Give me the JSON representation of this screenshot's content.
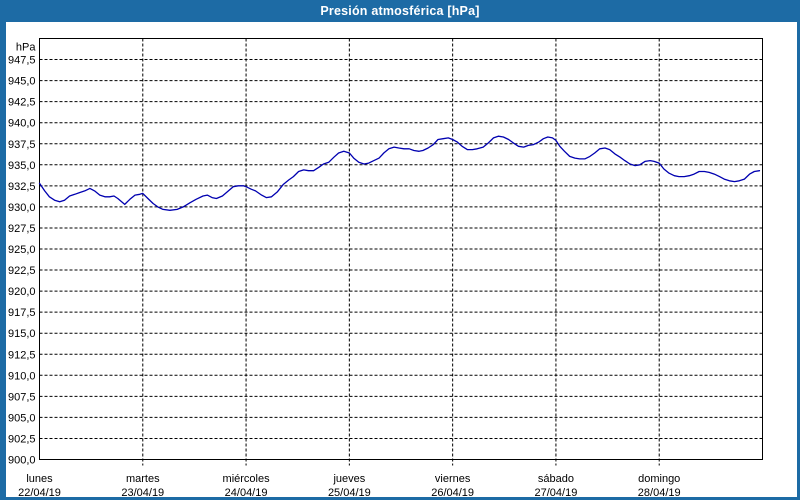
{
  "window": {
    "title": "Presión atmosférica [hPa]",
    "colors": {
      "frame": "#1d6ba5",
      "title_text": "#ffffff",
      "background": "#ffffff",
      "grid": "#000000",
      "text": "#000000",
      "line": "#0000b0"
    }
  },
  "chart_data": {
    "type": "line",
    "title": "Presión atmosférica [hPa]",
    "grid": "dashed",
    "legend_position": "none",
    "y_axis": {
      "unit_label": "hPa",
      "min": 900,
      "max": 950,
      "tick_step": 2.5,
      "tick_labels": [
        "947,5",
        "945,0",
        "942,5",
        "940,0",
        "937,5",
        "935,0",
        "932,5",
        "930,0",
        "927,5",
        "925,0",
        "922,5",
        "920,0",
        "917,5",
        "915,0",
        "912,5",
        "910,0",
        "907,5",
        "905,0",
        "902,5",
        "900,0"
      ]
    },
    "x_axis": {
      "total_hours": 168,
      "days": [
        {
          "name": "lunes",
          "date": "22/04/19"
        },
        {
          "name": "martes",
          "date": "23/04/19"
        },
        {
          "name": "miércoles",
          "date": "24/04/19"
        },
        {
          "name": "jueves",
          "date": "25/04/19"
        },
        {
          "name": "viernes",
          "date": "26/04/19"
        },
        {
          "name": "sábado",
          "date": "27/04/19"
        },
        {
          "name": "domingo",
          "date": "28/04/19"
        }
      ]
    },
    "series": [
      {
        "name": "Presión atmosférica",
        "color": "#0000b0",
        "points_hours_hpa": [
          [
            0,
            932.8
          ],
          [
            1.2,
            931.9
          ],
          [
            2.3,
            931.2
          ],
          [
            3.5,
            930.8
          ],
          [
            4.7,
            930.6
          ],
          [
            5.8,
            930.8
          ],
          [
            7,
            931.3
          ],
          [
            8.2,
            931.5
          ],
          [
            9.3,
            931.7
          ],
          [
            10.5,
            931.9
          ],
          [
            11.7,
            932.2
          ],
          [
            12.8,
            931.9
          ],
          [
            14,
            931.4
          ],
          [
            15.2,
            931.2
          ],
          [
            16.3,
            931.2
          ],
          [
            17.3,
            931.3
          ],
          [
            18.2,
            931.0
          ],
          [
            19.8,
            930.3
          ],
          [
            21,
            930.9
          ],
          [
            22.2,
            931.4
          ],
          [
            23.3,
            931.5
          ],
          [
            24,
            931.6
          ],
          [
            25.2,
            931.0
          ],
          [
            26.4,
            930.4
          ],
          [
            27.5,
            930.0
          ],
          [
            28.7,
            929.7
          ],
          [
            30.3,
            929.6
          ],
          [
            32,
            929.7
          ],
          [
            33.4,
            930.0
          ],
          [
            35,
            930.5
          ],
          [
            36.4,
            930.9
          ],
          [
            38,
            931.3
          ],
          [
            39,
            931.4
          ],
          [
            40.1,
            931.1
          ],
          [
            41.1,
            931.0
          ],
          [
            42.5,
            931.3
          ],
          [
            43.9,
            931.9
          ],
          [
            45,
            932.4
          ],
          [
            46.2,
            932.5
          ],
          [
            47.4,
            932.5
          ],
          [
            48,
            932.4
          ],
          [
            49.2,
            932.1
          ],
          [
            50.2,
            931.9
          ],
          [
            51.6,
            931.4
          ],
          [
            52.7,
            931.1
          ],
          [
            53.9,
            931.2
          ],
          [
            55.3,
            931.8
          ],
          [
            56.7,
            932.7
          ],
          [
            57.9,
            933.2
          ],
          [
            59,
            933.6
          ],
          [
            60.2,
            934.2
          ],
          [
            61.4,
            934.4
          ],
          [
            62.5,
            934.3
          ],
          [
            63.7,
            934.3
          ],
          [
            64.9,
            934.7
          ],
          [
            66,
            935.1
          ],
          [
            67.2,
            935.3
          ],
          [
            68.4,
            935.9
          ],
          [
            69.5,
            936.4
          ],
          [
            70.7,
            936.6
          ],
          [
            72,
            936.4
          ],
          [
            73,
            935.8
          ],
          [
            74.2,
            935.3
          ],
          [
            75.4,
            935.1
          ],
          [
            76.5,
            935.2
          ],
          [
            77.7,
            935.5
          ],
          [
            78.9,
            935.8
          ],
          [
            80,
            936.4
          ],
          [
            81.2,
            936.9
          ],
          [
            82.4,
            937.1
          ],
          [
            83.5,
            937.0
          ],
          [
            84.7,
            936.9
          ],
          [
            85.9,
            936.9
          ],
          [
            87,
            936.7
          ],
          [
            88.2,
            936.6
          ],
          [
            89.1,
            936.7
          ],
          [
            90.3,
            937.0
          ],
          [
            91.5,
            937.4
          ],
          [
            92.6,
            938.0
          ],
          [
            93.8,
            938.1
          ],
          [
            95,
            938.2
          ],
          [
            96,
            938.0
          ],
          [
            97.1,
            937.7
          ],
          [
            98.2,
            937.2
          ],
          [
            99.4,
            936.8
          ],
          [
            100.6,
            936.8
          ],
          [
            101.7,
            936.9
          ],
          [
            103.1,
            937.1
          ],
          [
            104.3,
            937.6
          ],
          [
            105.5,
            938.2
          ],
          [
            106.6,
            938.4
          ],
          [
            107.8,
            938.3
          ],
          [
            109,
            938.0
          ],
          [
            110.1,
            937.6
          ],
          [
            111.3,
            937.2
          ],
          [
            112.5,
            937.1
          ],
          [
            113.6,
            937.3
          ],
          [
            114.8,
            937.4
          ],
          [
            116,
            937.7
          ],
          [
            117.1,
            938.1
          ],
          [
            118.1,
            938.3
          ],
          [
            119.2,
            938.2
          ],
          [
            120,
            937.9
          ],
          [
            120.9,
            937.2
          ],
          [
            122,
            936.6
          ],
          [
            123.2,
            936.0
          ],
          [
            124.4,
            935.8
          ],
          [
            125.5,
            935.7
          ],
          [
            126.7,
            935.7
          ],
          [
            127.9,
            936.0
          ],
          [
            129,
            936.4
          ],
          [
            130.2,
            936.9
          ],
          [
            131.4,
            937.0
          ],
          [
            132.5,
            936.8
          ],
          [
            133.7,
            936.3
          ],
          [
            134.9,
            935.9
          ],
          [
            136,
            935.5
          ],
          [
            137.2,
            935.1
          ],
          [
            138.4,
            934.9
          ],
          [
            139.5,
            935.0
          ],
          [
            140.7,
            935.4
          ],
          [
            141.9,
            935.5
          ],
          [
            142.8,
            935.4
          ],
          [
            144,
            935.2
          ],
          [
            145.1,
            934.5
          ],
          [
            146.3,
            934.0
          ],
          [
            147.5,
            933.7
          ],
          [
            148.6,
            933.6
          ],
          [
            149.8,
            933.6
          ],
          [
            151,
            933.7
          ],
          [
            152.1,
            933.9
          ],
          [
            153.3,
            934.2
          ],
          [
            154.5,
            934.2
          ],
          [
            155.6,
            934.1
          ],
          [
            156.8,
            933.9
          ],
          [
            158,
            933.6
          ],
          [
            159.1,
            933.3
          ],
          [
            160.3,
            933.1
          ],
          [
            161.5,
            933.0
          ],
          [
            162.6,
            933.1
          ],
          [
            163.8,
            933.3
          ],
          [
            165,
            933.9
          ],
          [
            166.1,
            934.2
          ],
          [
            167.3,
            934.3
          ]
        ]
      }
    ]
  }
}
